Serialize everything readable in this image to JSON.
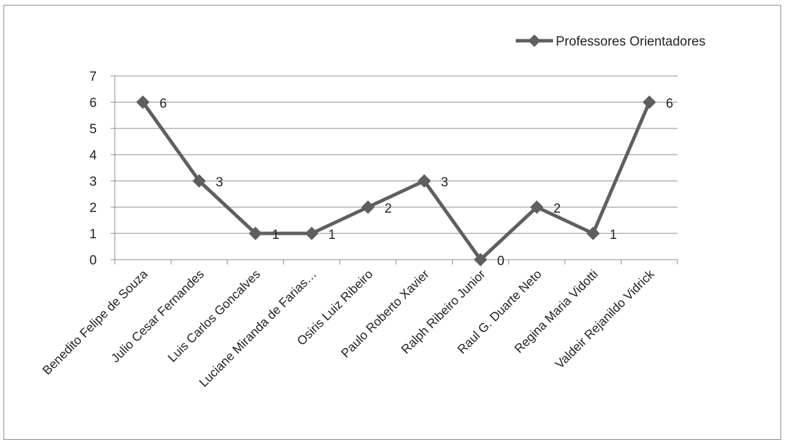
{
  "chart_data": {
    "type": "line",
    "title": "",
    "xlabel": "",
    "ylabel": "",
    "ylim": [
      0,
      7
    ],
    "y_ticks": [
      0,
      1,
      2,
      3,
      4,
      5,
      6,
      7
    ],
    "grid": true,
    "legend_position": "top-right",
    "categories": [
      "Benedito Felipe de Souza",
      "Julio Cesar Fernandes",
      "Luis Carlos Goncalves",
      "Luciane Miranda de Farias…",
      "Osiris Luiz Ribeiro",
      "Paulo Roberto Xavier",
      "Ralph Ribeiro Junior",
      "Raul G. Duarte Neto",
      "Regina Maria Vidotti",
      "Valdeir Rejanildo Vidrick"
    ],
    "series": [
      {
        "name": "Professores Orientadores",
        "values": [
          6,
          3,
          1,
          1,
          2,
          3,
          0,
          2,
          1,
          6
        ],
        "color": "#5f5f5f"
      }
    ]
  }
}
